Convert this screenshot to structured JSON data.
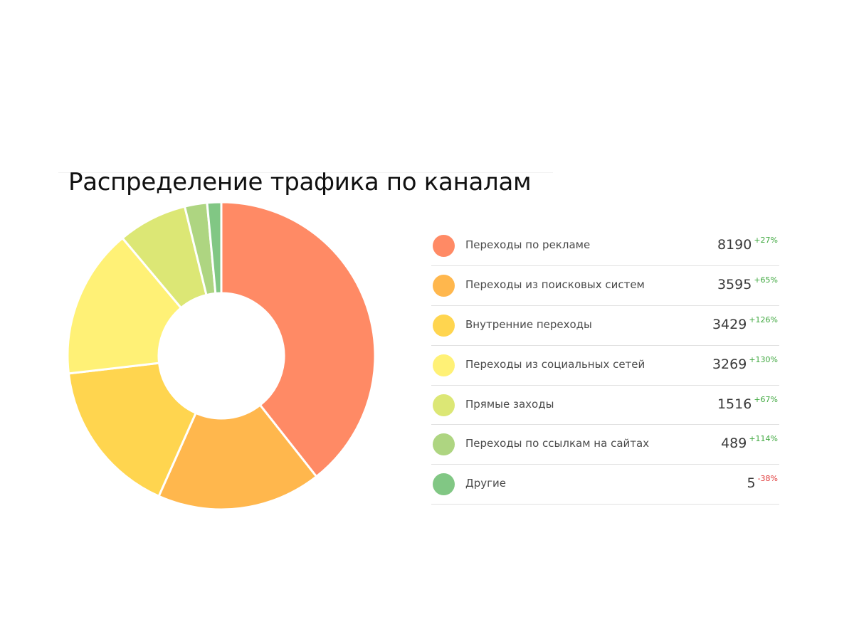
{
  "title": "Распределение трафика по каналам",
  "chart_data": {
    "type": "pie",
    "donut": true,
    "title": "Распределение трафика по каналам",
    "legend_position": "right",
    "series": [
      {
        "name": "Переходы по рекламе",
        "value": 8190,
        "change": "+27%",
        "color": "#FF8A65"
      },
      {
        "name": "Переходы из поисковых систем",
        "value": 3595,
        "change": "+65%",
        "color": "#FFB74D"
      },
      {
        "name": "Внутренние переходы",
        "value": 3429,
        "change": "+126%",
        "color": "#FFD54F"
      },
      {
        "name": "Переходы из социальных сетей",
        "value": 3269,
        "change": "+130%",
        "color": "#FFF176"
      },
      {
        "name": "Прямые заходы",
        "value": 1516,
        "change": "+67%",
        "color": "#DCE775"
      },
      {
        "name": "Переходы по ссылкам на сайтах",
        "value": 489,
        "change": "+114%",
        "color": "#AED581"
      },
      {
        "name": "Другие",
        "value": 5,
        "change": "-38%",
        "color": "#81C784"
      }
    ]
  }
}
